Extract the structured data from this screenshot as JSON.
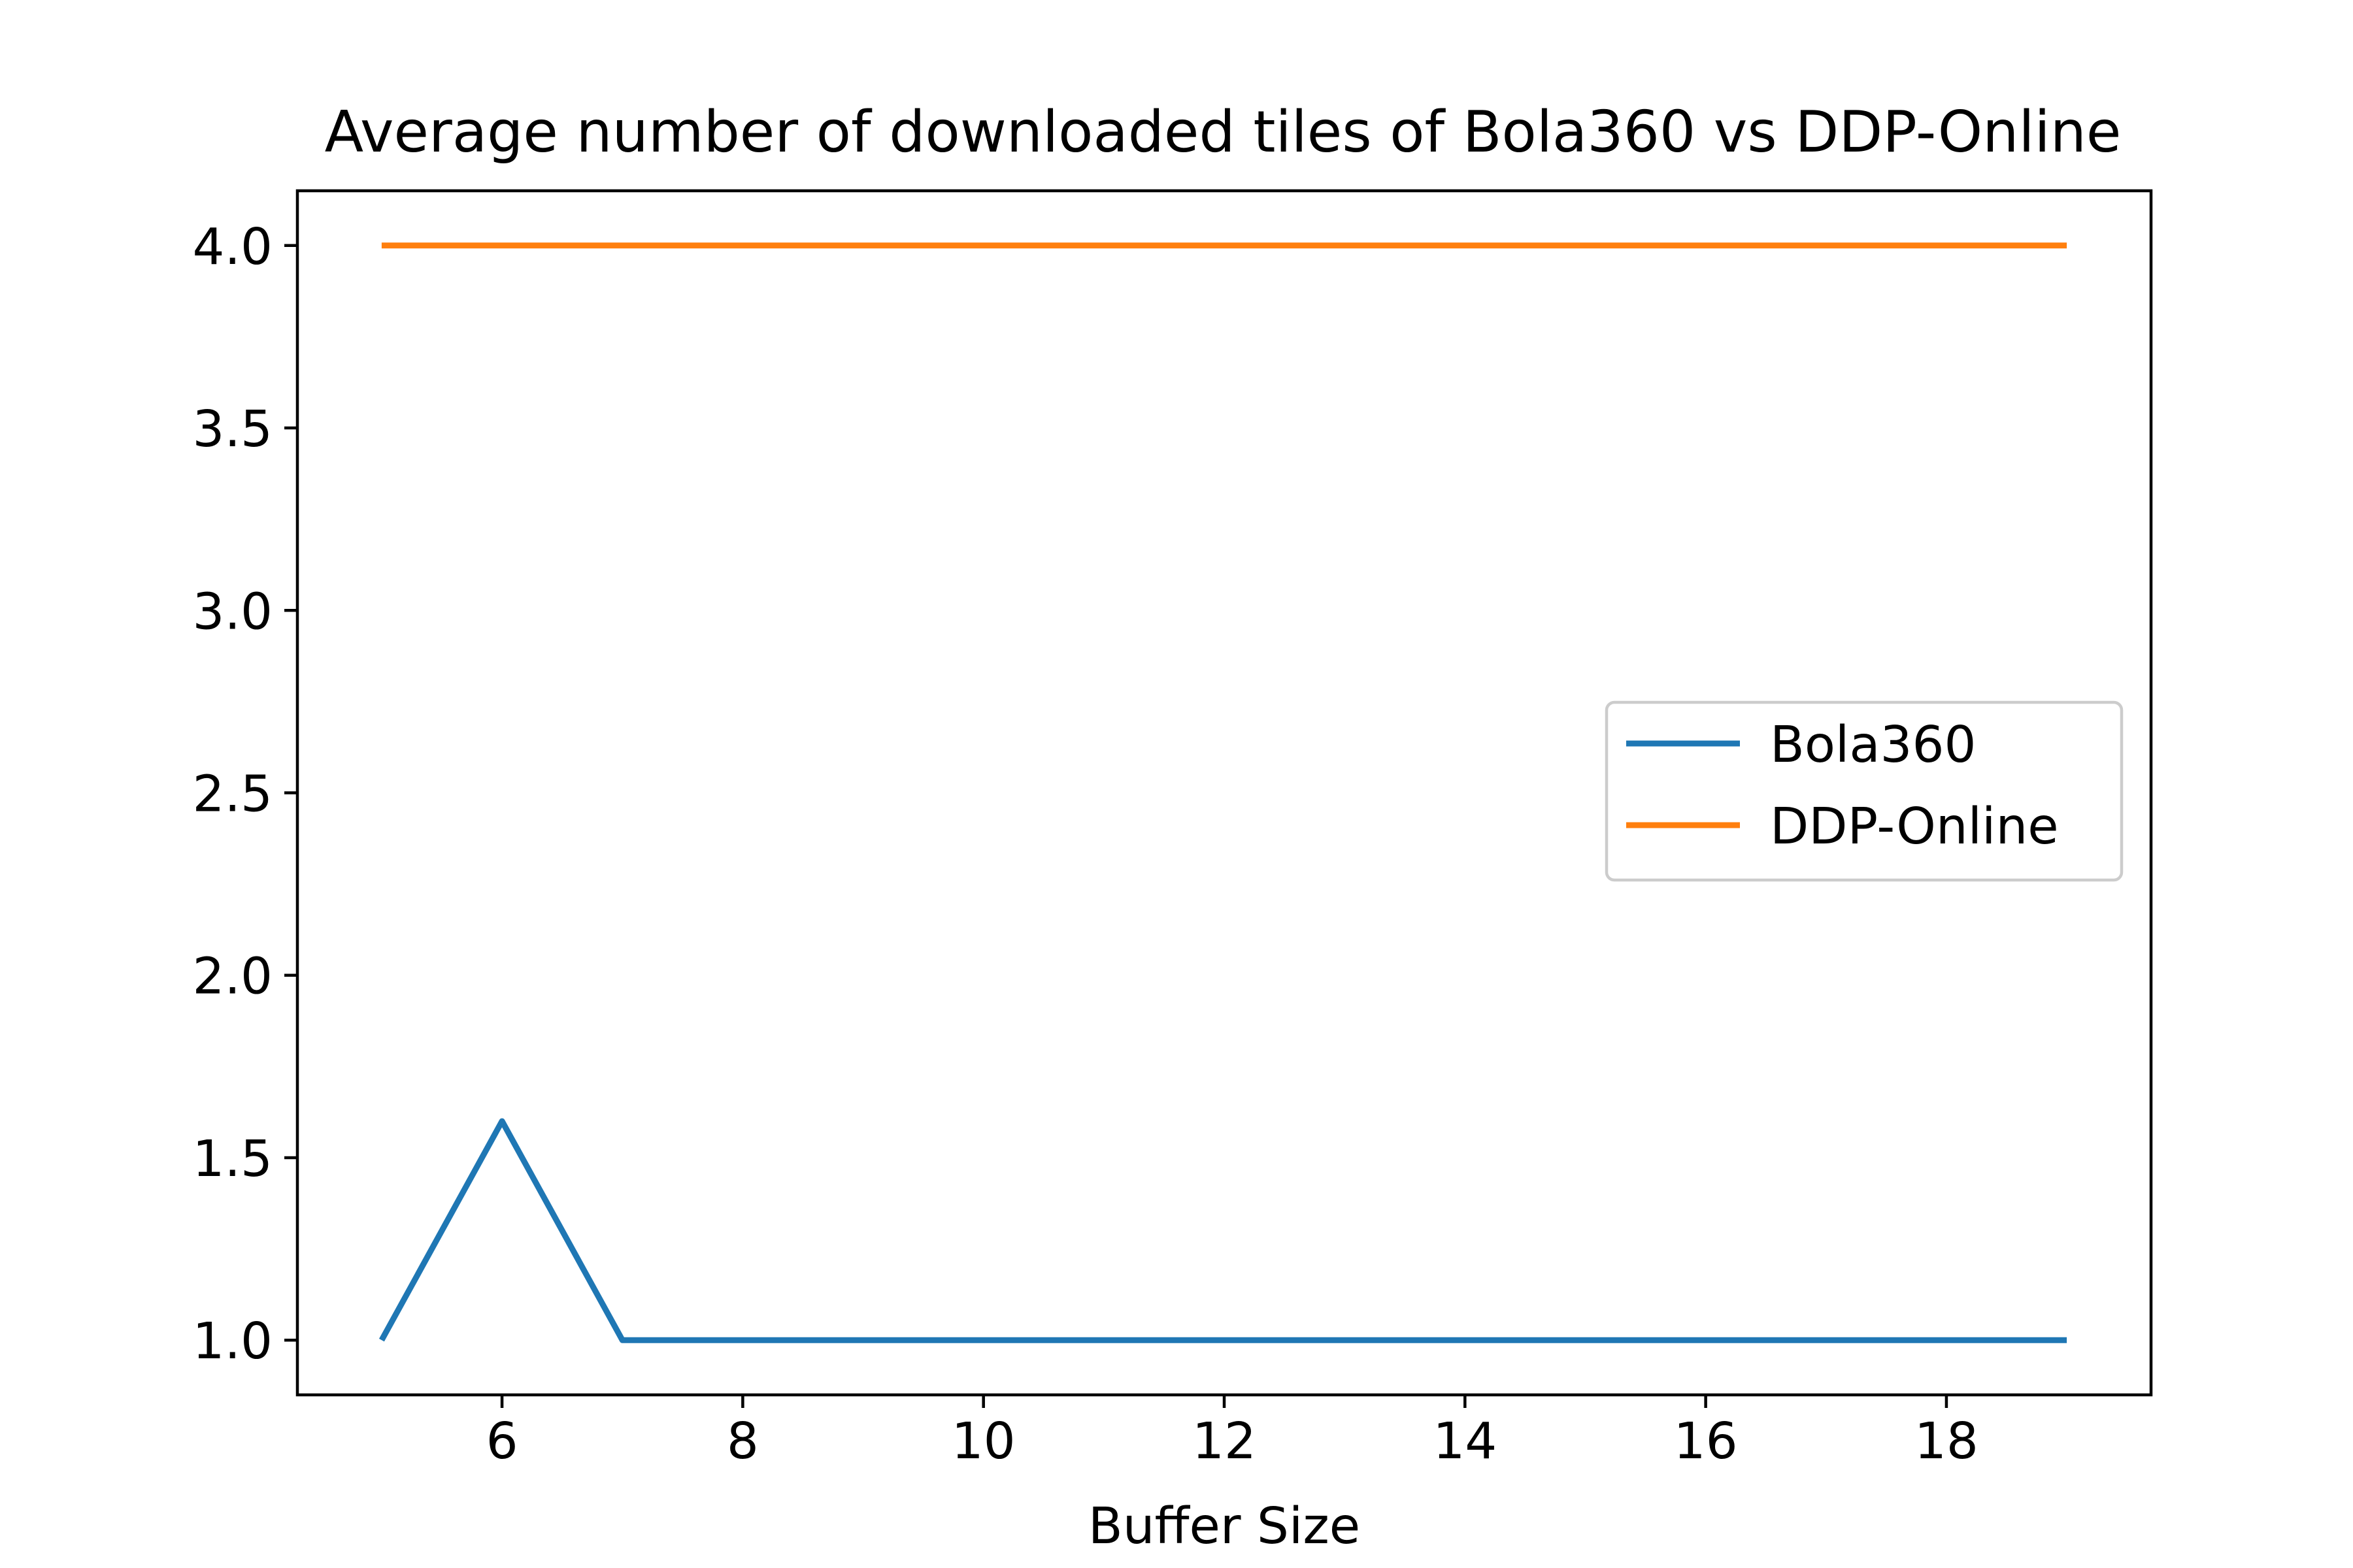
{
  "chart_data": {
    "type": "line",
    "title": "Average number of downloaded tiles of Bola360 vs DDP-Online",
    "xlabel": "Buffer Size",
    "ylabel": "",
    "xlim": [
      4.3,
      19.7
    ],
    "ylim": [
      0.85,
      4.15
    ],
    "xticks": [
      6,
      8,
      10,
      12,
      14,
      16,
      18
    ],
    "xtick_labels": [
      "6",
      "8",
      "10",
      "12",
      "14",
      "16",
      "18"
    ],
    "yticks": [
      1.0,
      1.5,
      2.0,
      2.5,
      3.0,
      3.5,
      4.0
    ],
    "ytick_labels": [
      "1.0",
      "1.5",
      "2.0",
      "2.5",
      "3.0",
      "3.5",
      "4.0"
    ],
    "grid": false,
    "legend": "center-right",
    "x": [
      5,
      6,
      7,
      8,
      9,
      10,
      11,
      12,
      13,
      14,
      15,
      16,
      17,
      18,
      19
    ],
    "series": [
      {
        "name": "Bola360",
        "color": "#1f77b4",
        "values": [
          1.0,
          1.6,
          1.0,
          1.0,
          1.0,
          1.0,
          1.0,
          1.0,
          1.0,
          1.0,
          1.0,
          1.0,
          1.0,
          1.0,
          1.0
        ]
      },
      {
        "name": "DDP-Online",
        "color": "#ff7f0e",
        "values": [
          4.0,
          4.0,
          4.0,
          4.0,
          4.0,
          4.0,
          4.0,
          4.0,
          4.0,
          4.0,
          4.0,
          4.0,
          4.0,
          4.0,
          4.0
        ]
      }
    ]
  }
}
